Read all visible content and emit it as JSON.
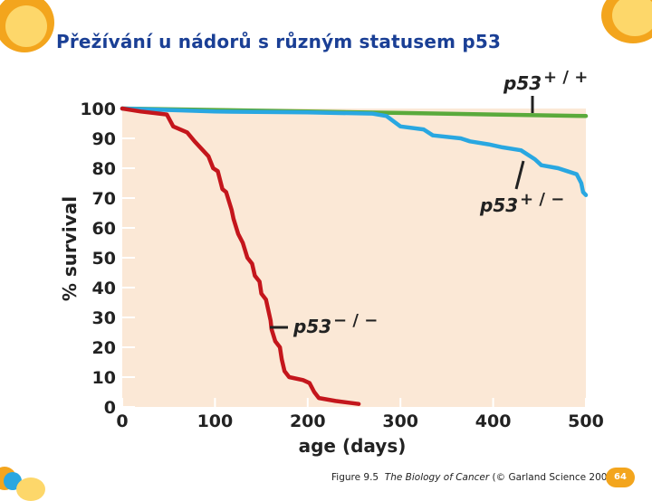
{
  "slide": {
    "title": "Přežívání u nádorů s různým statusem p53",
    "caption": {
      "figure": "Figure 9.5",
      "book": "The Biology of Cancer",
      "credit": "(© Garland Science 2007)"
    },
    "page_number": "64",
    "colors": {
      "title": "#1a3f95",
      "accent_orange": "#f3a51d",
      "accent_blue": "#29a7e1",
      "plot_bg": "#fbe8d6"
    }
  },
  "chart_data": {
    "type": "line",
    "title": "",
    "xlabel": "age (days)",
    "ylabel": "% survival",
    "xlim": [
      0,
      500
    ],
    "ylim": [
      0,
      100
    ],
    "x_ticks": [
      "0",
      "100",
      "200",
      "300",
      "400",
      "500"
    ],
    "y_ticks": [
      "0",
      "10",
      "20",
      "30",
      "40",
      "50",
      "60",
      "70",
      "80",
      "90",
      "100"
    ],
    "grid": false,
    "series": [
      {
        "name": "p53 + / +",
        "color": "#5aaa3c",
        "label_lines": [
          "p53",
          "+ / +"
        ],
        "points": [
          [
            0,
            100
          ],
          [
            100,
            99.5
          ],
          [
            200,
            99
          ],
          [
            300,
            98.5
          ],
          [
            400,
            98
          ],
          [
            500,
            97.5
          ]
        ]
      },
      {
        "name": "p53 + / −",
        "color": "#29a7e1",
        "label_lines": [
          "p53",
          "+ / −"
        ],
        "points": [
          [
            0,
            100
          ],
          [
            100,
            99
          ],
          [
            200,
            98.7
          ],
          [
            270,
            98.3
          ],
          [
            285,
            97.5
          ],
          [
            300,
            94
          ],
          [
            325,
            93
          ],
          [
            335,
            91
          ],
          [
            365,
            90
          ],
          [
            375,
            89
          ],
          [
            395,
            88
          ],
          [
            410,
            87
          ],
          [
            430,
            86
          ],
          [
            445,
            83
          ],
          [
            452,
            81
          ],
          [
            470,
            80
          ],
          [
            480,
            79
          ],
          [
            490,
            78
          ],
          [
            495,
            75
          ],
          [
            497,
            72
          ],
          [
            500,
            71
          ]
        ]
      },
      {
        "name": "p53 − / −",
        "color": "#c4161c",
        "label_lines": [
          "p53",
          "− / −"
        ],
        "points": [
          [
            0,
            100
          ],
          [
            20,
            99
          ],
          [
            48,
            98
          ],
          [
            55,
            94
          ],
          [
            70,
            92
          ],
          [
            78,
            89
          ],
          [
            93,
            84
          ],
          [
            98,
            80
          ],
          [
            103,
            79
          ],
          [
            108,
            73
          ],
          [
            112,
            72
          ],
          [
            118,
            66
          ],
          [
            120,
            63
          ],
          [
            125,
            58
          ],
          [
            130,
            55
          ],
          [
            135,
            50
          ],
          [
            140,
            48
          ],
          [
            143,
            44
          ],
          [
            148,
            42
          ],
          [
            150,
            38
          ],
          [
            155,
            36
          ],
          [
            160,
            29
          ],
          [
            161,
            26
          ],
          [
            165,
            22
          ],
          [
            170,
            20
          ],
          [
            172,
            16
          ],
          [
            175,
            12
          ],
          [
            180,
            10
          ],
          [
            195,
            9
          ],
          [
            202,
            8
          ],
          [
            207,
            5
          ],
          [
            212,
            3
          ],
          [
            230,
            2
          ],
          [
            255,
            1
          ]
        ]
      }
    ]
  }
}
